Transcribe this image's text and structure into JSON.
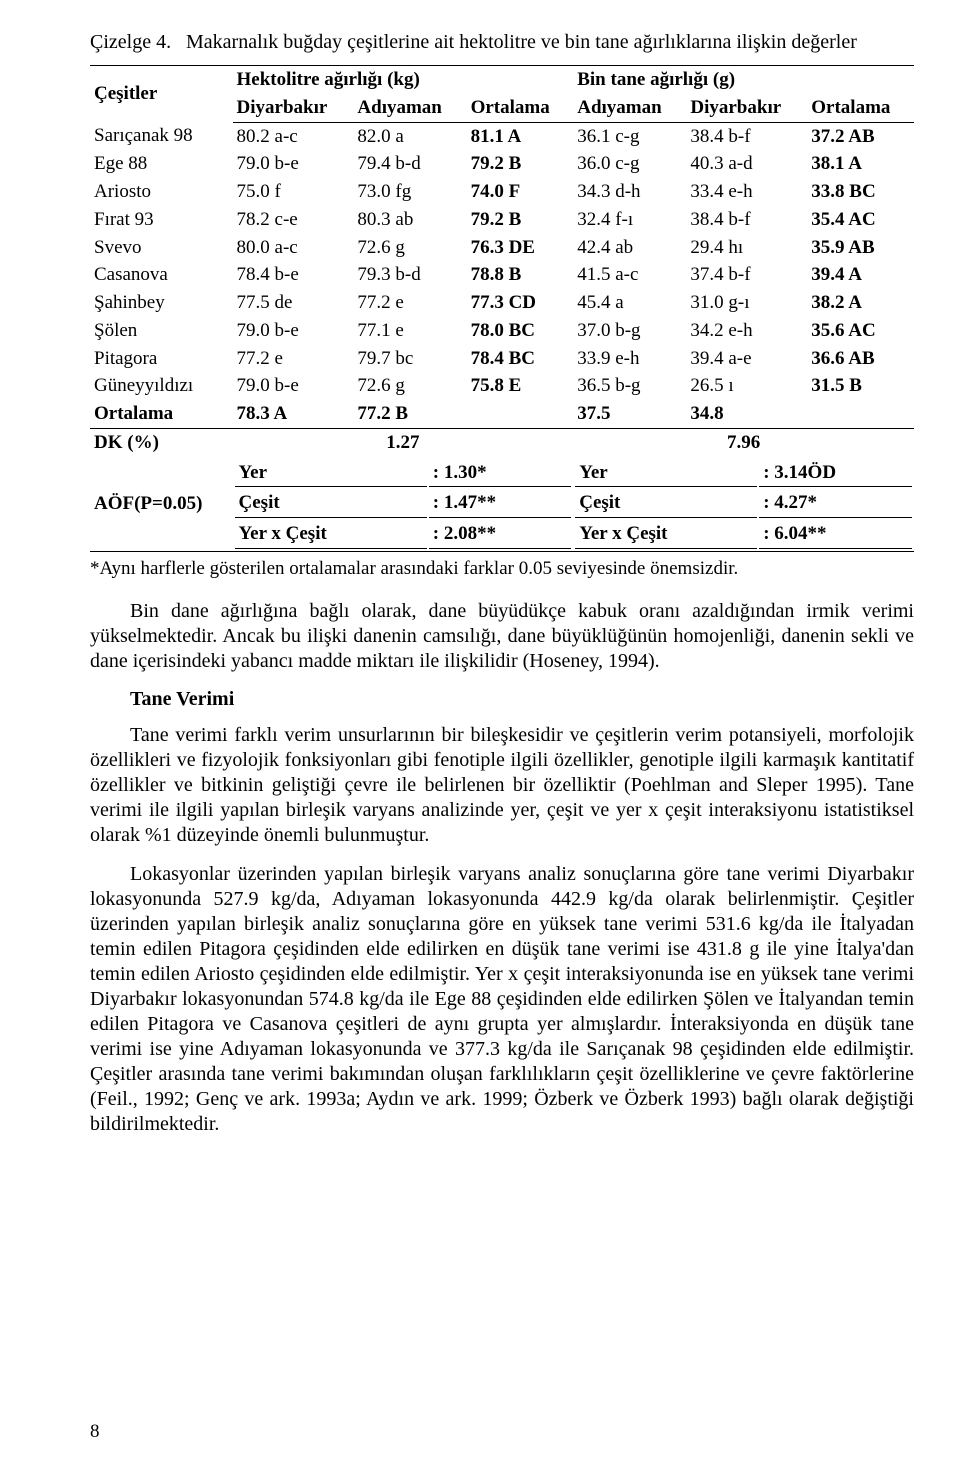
{
  "caption": {
    "label": "Çizelge 4.",
    "text": "Makarnalık buğday çeşitlerine ait hektolitre ve bin tane ağırlıklarına ilişkin değerler"
  },
  "table": {
    "col_first": "Çeşitler",
    "group1": "Hektolitre ağırlığı (kg)",
    "group2": "Bin tane ağırlığı (g)",
    "sub": [
      "Diyarbakır",
      "Adıyaman",
      "Ortalama",
      "Adıyaman",
      "Diyarbakır",
      "Ortalama"
    ],
    "rows": [
      {
        "n": "Sarıçanak 98",
        "c": [
          "80.2 a-c",
          "82.0 a",
          "81.1 A",
          "36.1 c-g",
          "38.4 b-f",
          "37.2 AB"
        ]
      },
      {
        "n": "Ege 88",
        "c": [
          "79.0 b-e",
          "79.4 b-d",
          "79.2 B",
          "36.0 c-g",
          "40.3 a-d",
          "38.1 A"
        ]
      },
      {
        "n": "Ariosto",
        "c": [
          "75.0 f",
          "73.0 fg",
          "74.0 F",
          "34.3 d-h",
          "33.4 e-h",
          "33.8 BC"
        ]
      },
      {
        "n": "Fırat 93",
        "c": [
          "78.2 c-e",
          "80.3 ab",
          "79.2 B",
          "32.4 f-ı",
          "38.4 b-f",
          "35.4 AC"
        ]
      },
      {
        "n": "Svevo",
        "c": [
          "80.0 a-c",
          "72.6 g",
          "76.3 DE",
          "42.4 ab",
          "29.4 hı",
          "35.9 AB"
        ]
      },
      {
        "n": "Casanova",
        "c": [
          "78.4 b-e",
          "79.3 b-d",
          "78.8 B",
          "41.5 a-c",
          "37.4 b-f",
          "39.4 A"
        ]
      },
      {
        "n": "Şahinbey",
        "c": [
          "77.5 de",
          "77.2 e",
          "77.3 CD",
          "45.4 a",
          "31.0 g-ı",
          "38.2 A"
        ]
      },
      {
        "n": "Şölen",
        "c": [
          "79.0 b-e",
          "77.1 e",
          "78.0 BC",
          "37.0 b-g",
          "34.2 e-h",
          "35.6 AC"
        ]
      },
      {
        "n": "Pitagora",
        "c": [
          "77.2 e",
          "79.7 bc",
          "78.4 BC",
          "33.9 e-h",
          "39.4 a-e",
          "36.6 AB"
        ]
      },
      {
        "n": "Güneyyıldızı",
        "c": [
          "79.0 b-e",
          "72.6 g",
          "75.8 E",
          "36.5 b-g",
          "26.5 ı",
          "31.5 B"
        ]
      }
    ],
    "ort_row": {
      "n": "Ortalama",
      "c": [
        "78.3 A",
        "77.2 B",
        "",
        "37.5",
        "34.8",
        ""
      ]
    },
    "dk_row": {
      "n": "DK (%)",
      "c1": "1.27",
      "c2": "7.96"
    },
    "aof": {
      "label": "AÖF(P=0.05)",
      "left": [
        {
          "k": "Yer",
          "v": ": 1.30*"
        },
        {
          "k": "Çeşit",
          "v": ": 1.47**"
        },
        {
          "k": "Yer x Çeşit",
          "v": ": 2.08**"
        }
      ],
      "right": [
        {
          "k": "Yer",
          "v": ": 3.14ÖD"
        },
        {
          "k": "Çeşit",
          "v": ": 4.27*"
        },
        {
          "k": "Yer x Çeşit",
          "v": ": 6.04**"
        }
      ]
    }
  },
  "footnote": "*Aynı harflerle gösterilen ortalamalar arasındaki farklar 0.05 seviyesinde önemsizdir.",
  "para1": "Bin dane ağırlığına bağlı olarak, dane büyüdükçe kabuk oranı azaldığından irmik verimi yükselmektedir. Ancak bu ilişki danenin camsılığı, dane büyüklüğünün homojenliği, danenin sekli ve dane içerisindeki yabancı madde miktarı ile ilişkilidir (Hoseney, 1994).",
  "section_title": "Tane Verimi",
  "para2": "Tane verimi farklı verim unsurlarının bir bileşkesidir ve çeşitlerin verim potansiyeli, morfolojik özellikleri ve fizyolojik fonksiyonları gibi fenotiple ilgili özellikler, genotiple ilgili karmaşık kantitatif özellikler ve bitkinin geliştiği çevre ile belirlenen bir özelliktir (Poehlman and Sleper 1995). Tane verimi ile ilgili yapılan birleşik varyans analizinde yer, çeşit ve yer x çeşit interaksiyonu istatistiksel olarak %1 düzeyinde önemli bulunmuştur.",
  "para3": "Lokasyonlar üzerinden yapılan birleşik varyans analiz sonuçlarına göre tane verimi Diyarbakır lokasyonunda 527.9 kg/da, Adıyaman lokasyonunda 442.9 kg/da olarak belirlenmiştir. Çeşitler üzerinden yapılan birleşik analiz sonuçlarına göre en yüksek tane verimi 531.6 kg/da ile İtalyadan temin edilen Pitagora çeşidinden elde edilirken en düşük tane verimi ise 431.8 g ile yine İtalya'dan temin edilen Ariosto çeşidinden elde edilmiştir. Yer x çeşit interaksiyonunda ise en yüksek tane verimi Diyarbakır lokasyonundan 574.8 kg/da ile Ege 88 çeşidinden elde edilirken Şölen ve İtalyandan temin edilen Pitagora ve Casanova çeşitleri de aynı grupta yer almışlardır. İnteraksiyonda en düşük tane verimi ise yine Adıyaman lokasyonunda ve 377.3 kg/da ile Sarıçanak 98 çeşidinden elde edilmiştir. Çeşitler arasında tane verimi bakımından oluşan farklılıkların çeşit özelliklerine ve çevre faktörlerine (Feil., 1992; Genç ve ark. 1993a; Aydın ve ark. 1999; Özberk ve Özberk 1993) bağlı olarak değiştiği bildirilmektedir.",
  "page_number": "8"
}
